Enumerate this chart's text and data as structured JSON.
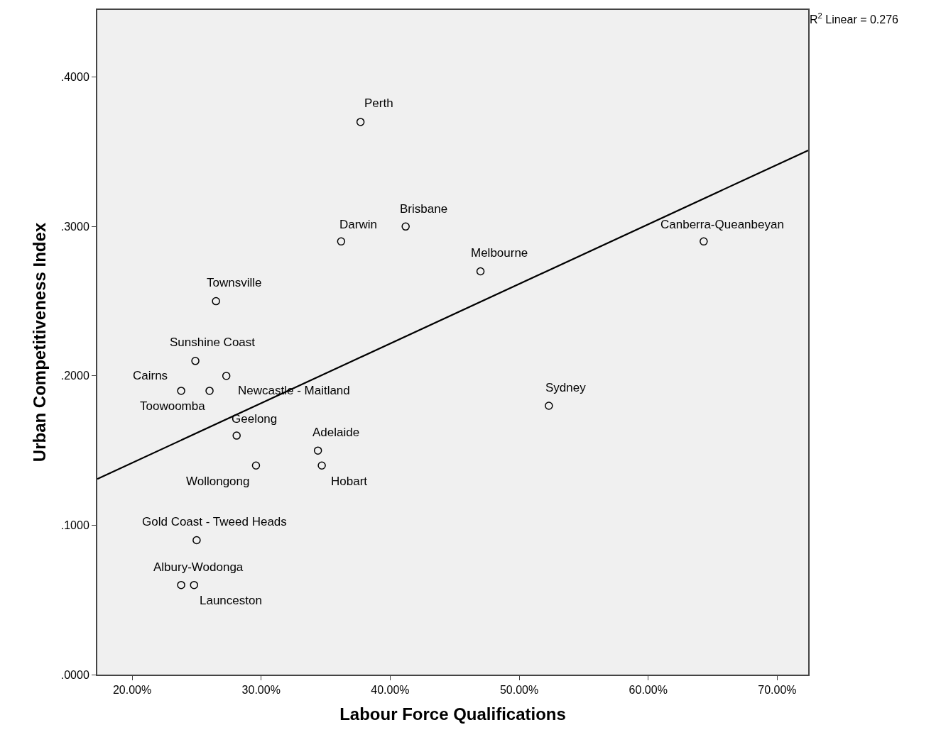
{
  "chart_data": {
    "type": "scatter",
    "xlabel": "Labour Force Qualifications",
    "ylabel": "Urban Competitiveness Index",
    "xlim": [
      17.3,
      72.4
    ],
    "ylim": [
      0,
      0.445
    ],
    "xticks": [
      {
        "value": 20,
        "label": "20.00%"
      },
      {
        "value": 30,
        "label": "30.00%"
      },
      {
        "value": 40,
        "label": "40.00%"
      },
      {
        "value": 50,
        "label": "50.00%"
      },
      {
        "value": 60,
        "label": "60.00%"
      },
      {
        "value": 70,
        "label": "70.00%"
      }
    ],
    "yticks": [
      {
        "value": 0,
        "label": ".0000"
      },
      {
        "value": 0.1,
        "label": ".1000"
      },
      {
        "value": 0.2,
        "label": ".2000"
      },
      {
        "value": 0.3,
        "label": ".3000"
      },
      {
        "value": 0.4,
        "label": ".4000"
      }
    ],
    "grid": false,
    "legend": false,
    "marker": "circle",
    "series": [
      {
        "color": "#000000",
        "x": [
          37.7,
          36.2,
          41.2,
          47.0,
          64.3,
          26.5,
          24.9,
          27.3,
          23.8,
          26.0,
          28.1,
          29.6,
          34.4,
          34.7,
          52.3,
          25.0,
          23.8,
          24.8
        ],
        "values": [
          0.37,
          0.29,
          0.3,
          0.27,
          0.29,
          0.25,
          0.21,
          0.2,
          0.19,
          0.19,
          0.16,
          0.14,
          0.15,
          0.14,
          0.18,
          0.09,
          0.06,
          0.06
        ]
      },
      {
        "type": "line",
        "marker": "none",
        "color": "#000000",
        "x": [
          17.3,
          72.4
        ],
        "values": [
          0.131,
          0.351
        ]
      }
    ],
    "annotations": [
      "R$^{2}$ Linear = 0.276",
      {
        "text": "Perth",
        "x": 37.7,
        "y": 0.37
      },
      {
        "text": "Brisbane",
        "x": 41.2,
        "y": 0.3
      },
      {
        "text": "Darwin",
        "x": 36.2,
        "y": 0.29
      },
      {
        "text": "Melbourne",
        "x": 47.0,
        "y": 0.27
      },
      {
        "text": "Canberra-Queanbeyan",
        "x": 64.3,
        "y": 0.29
      },
      {
        "text": "Townsville",
        "x": 26.5,
        "y": 0.25
      },
      {
        "text": "Sunshine Coast",
        "x": 24.9,
        "y": 0.21
      },
      {
        "text": "Cairns",
        "x": 23.8,
        "y": 0.19
      },
      {
        "text": "Newcastle - Maitland",
        "x": 26.0,
        "y": 0.19
      },
      {
        "text": "Toowoomba",
        "x": 27.3,
        "y": 0.2
      },
      {
        "text": "Geelong",
        "x": 28.1,
        "y": 0.16
      },
      {
        "text": "Adelaide",
        "x": 34.4,
        "y": 0.15
      },
      {
        "text": "Sydney",
        "x": 52.3,
        "y": 0.18
      },
      {
        "text": "Wollongong",
        "x": 29.6,
        "y": 0.14
      },
      {
        "text": "Hobart",
        "x": 34.7,
        "y": 0.14
      },
      {
        "text": "Gold Coast - Tweed Heads",
        "x": 25.0,
        "y": 0.09
      },
      {
        "text": "Albury-Wodonga",
        "x": 23.8,
        "y": 0.06
      },
      {
        "text": "Launceston",
        "x": 24.8,
        "y": 0.06
      }
    ]
  }
}
